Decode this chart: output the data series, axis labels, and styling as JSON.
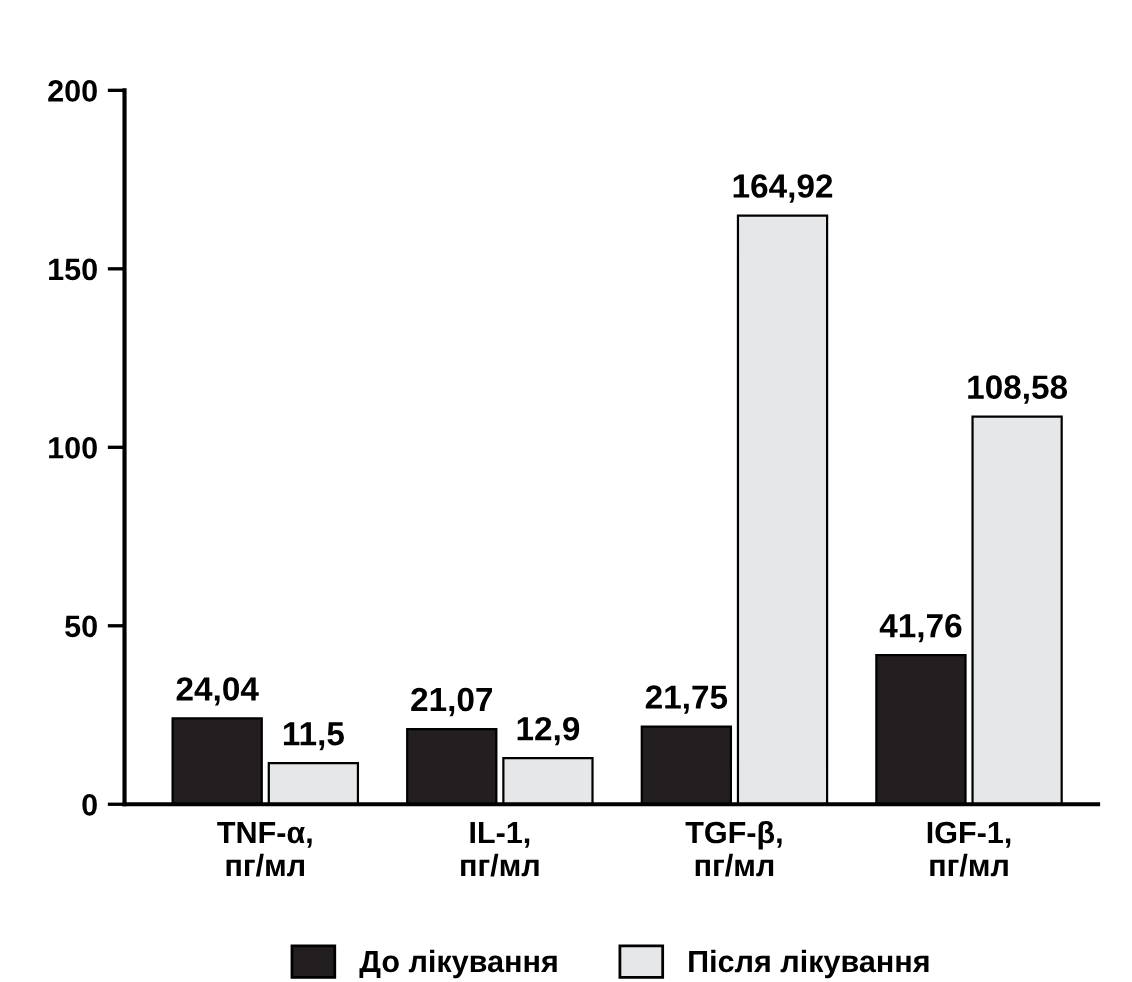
{
  "chart_data": {
    "type": "bar",
    "categories": [
      "TNF-α,\nпг/мл",
      "IL-1,\nпг/мл",
      "TGF-β,\nпг/мл",
      "IGF-1,\nпг/мл"
    ],
    "series": [
      {
        "name": "До лікування",
        "color": "#231f20",
        "values": [
          24.04,
          21.07,
          21.75,
          41.76
        ],
        "value_labels": [
          "24,04",
          "21,07",
          "21,75",
          "41,76"
        ]
      },
      {
        "name": "Після лікування",
        "color": "#e6e7e8",
        "values": [
          11.5,
          12.9,
          164.92,
          108.58
        ],
        "value_labels": [
          "11,5",
          "12,9",
          "164,92",
          "108,58"
        ]
      }
    ],
    "ylim": [
      0,
      200
    ],
    "yticks": [
      0,
      50,
      100,
      150,
      200
    ],
    "grid": false,
    "legend": "bottom"
  }
}
